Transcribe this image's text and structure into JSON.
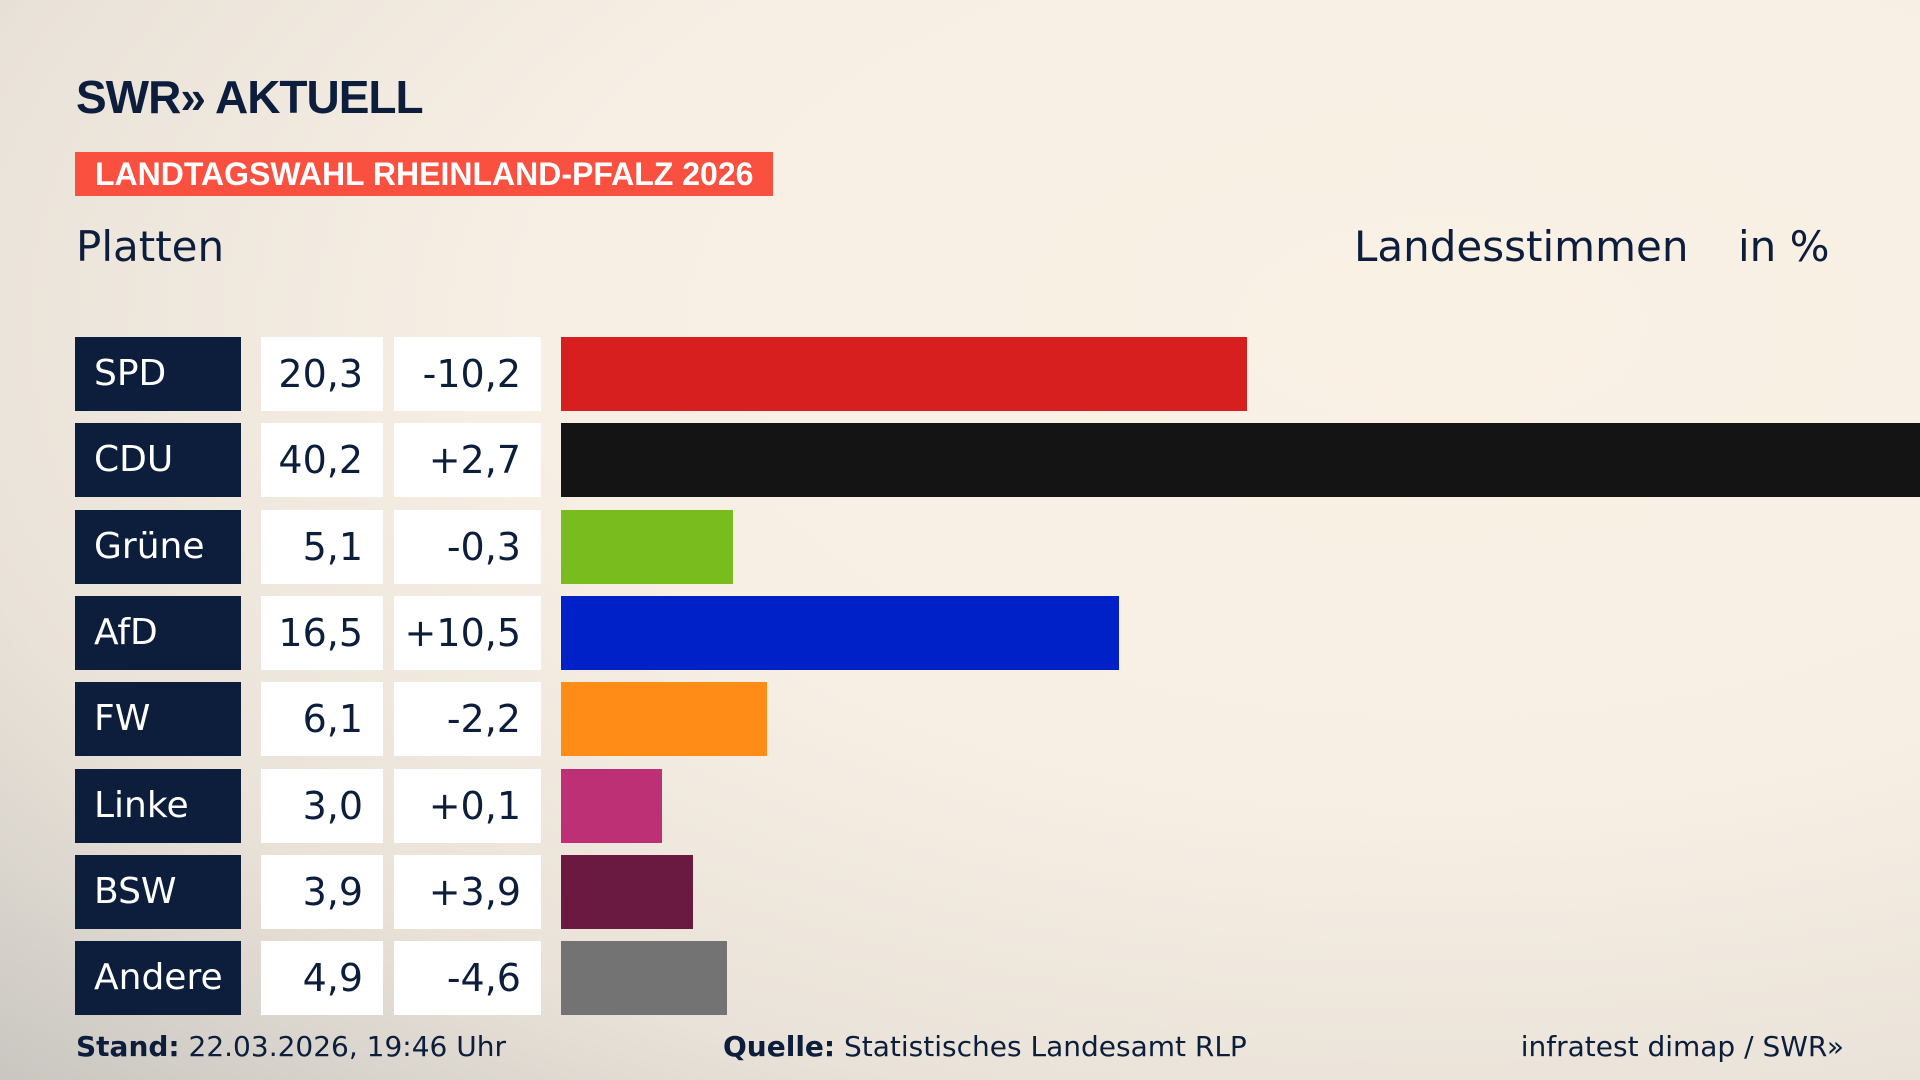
{
  "header": {
    "logo": "SWR» AKTUELL",
    "banner": "LANDTAGSWAHL RHEINLAND-PFALZ 2026",
    "region": "Platten",
    "vote_type": "Landesstimmen",
    "unit": "in %"
  },
  "chart_data": {
    "type": "bar",
    "orientation": "horizontal",
    "categories": [
      "SPD",
      "CDU",
      "Grüne",
      "AfD",
      "FW",
      "Linke",
      "BSW",
      "Andere"
    ],
    "values": [
      20.3,
      40.2,
      5.1,
      16.5,
      6.1,
      3.0,
      3.9,
      4.9
    ],
    "value_labels": [
      "20,3",
      "40,2",
      "5,1",
      "16,5",
      "6,1",
      "3,0",
      "3,9",
      "4,9"
    ],
    "diff_labels": [
      "-10,2",
      "+2,7",
      "-0,3",
      "+10,5",
      "-2,2",
      "+0,1",
      "+3,9",
      "-4,6"
    ],
    "colors": [
      "#d71f20",
      "#141414",
      "#78bc1e",
      "#0021c8",
      "#ff8c17",
      "#bd3075",
      "#6a1a40",
      "#737373"
    ]
  },
  "footer": {
    "stand_label": "Stand:",
    "stand_value": "22.03.2026, 19:46 Uhr",
    "source_label": "Quelle:",
    "source_value": "Statistisches Landesamt RLP",
    "credit": "infratest dimap / SWR»"
  }
}
